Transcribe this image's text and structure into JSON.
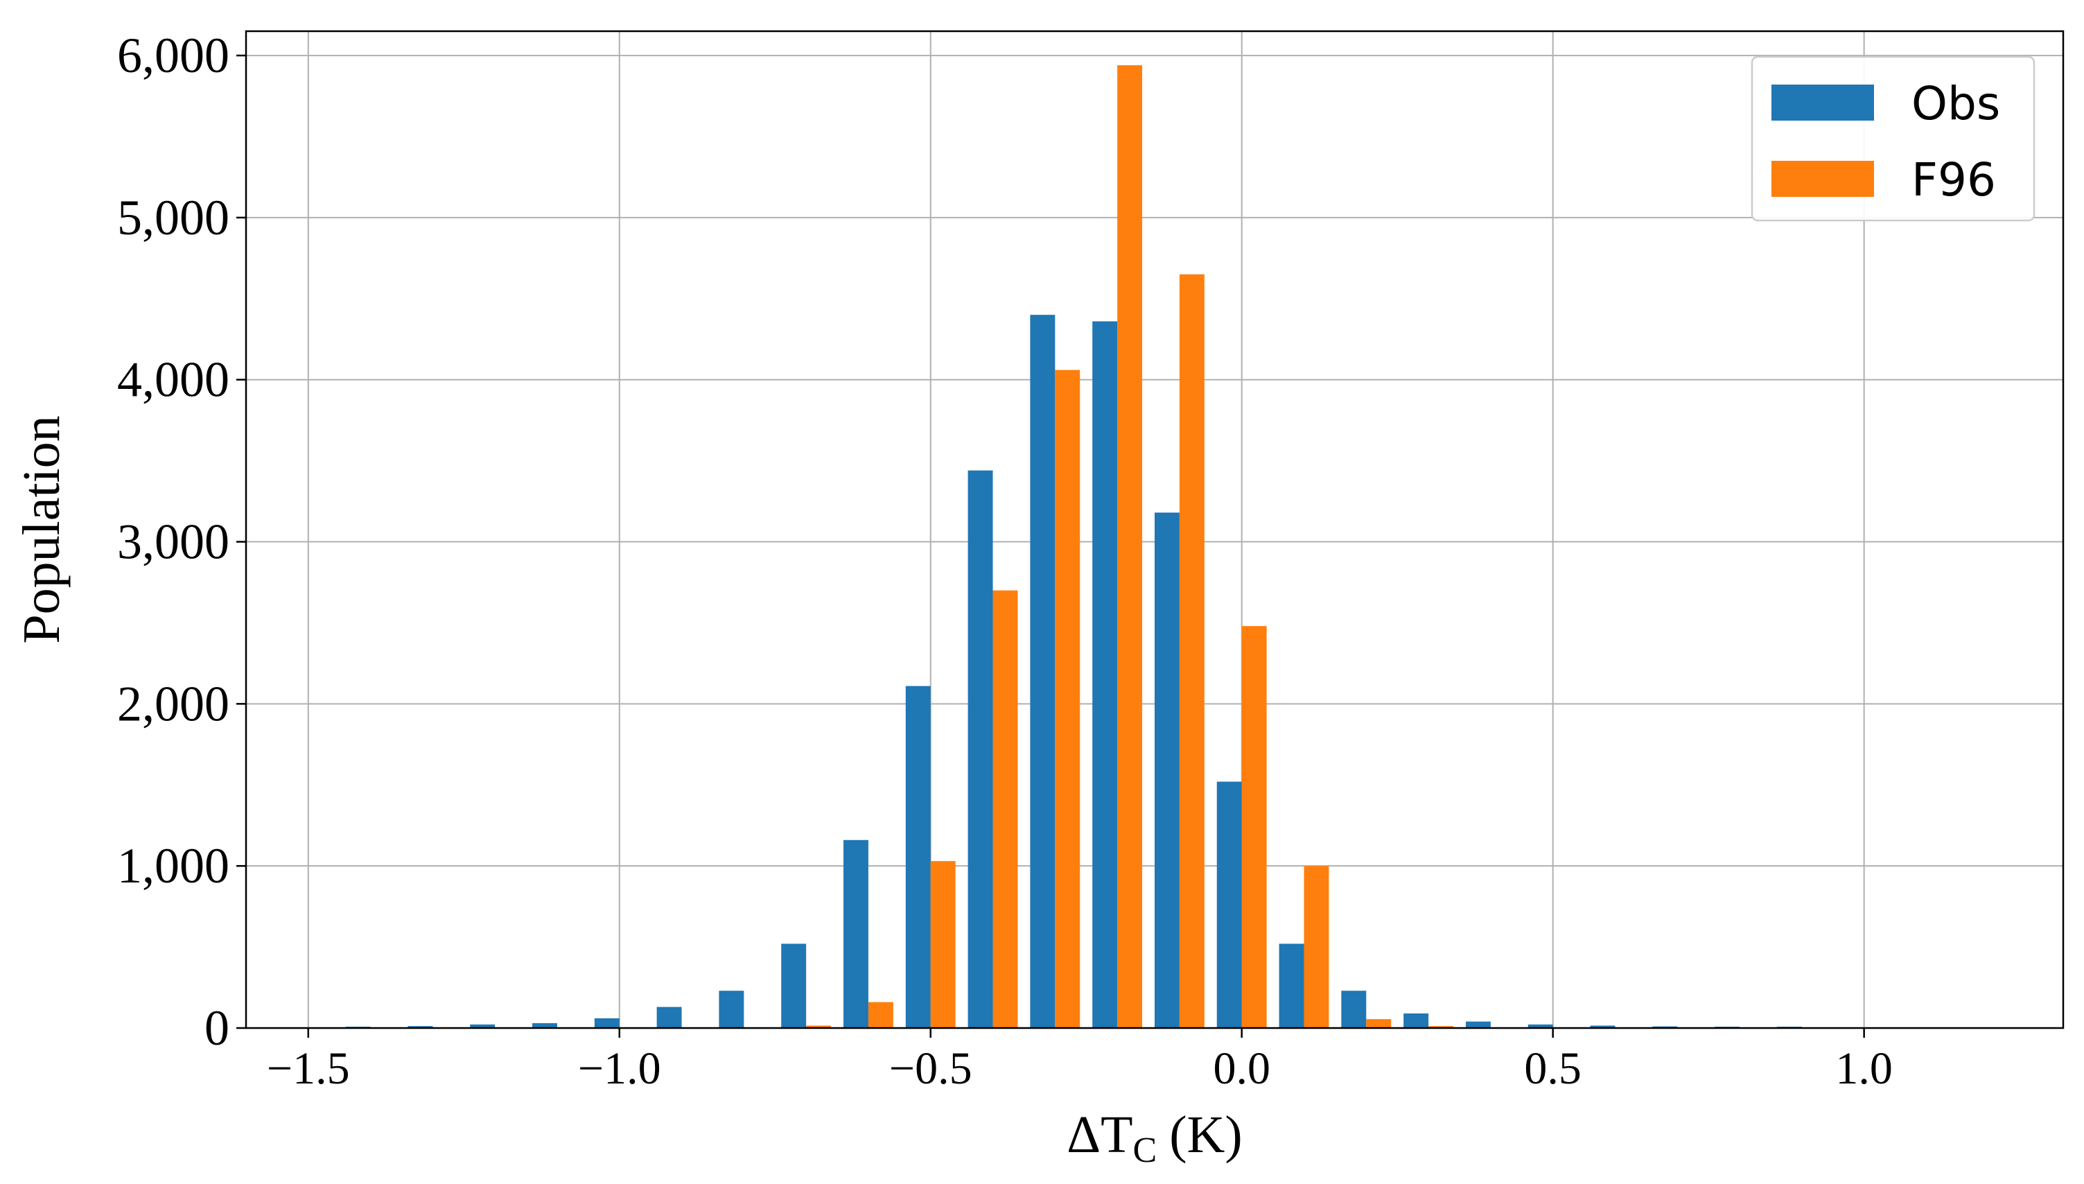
{
  "chart_data": {
    "type": "bar",
    "title": "",
    "xlabel": "ΔT",
    "xlabel_subscript": "C",
    "xlabel_unit": "(K)",
    "ylabel": "Population",
    "xlim": [
      -1.6,
      1.32
    ],
    "ylim": [
      0,
      6150
    ],
    "grid": true,
    "legend": {
      "position": "top-right"
    },
    "bin_width": 0.1,
    "bin_centers": [
      -1.4,
      -1.3,
      -1.2,
      -1.1,
      -1.0,
      -0.9,
      -0.8,
      -0.7,
      -0.6,
      -0.5,
      -0.4,
      -0.3,
      -0.2,
      -0.1,
      0.0,
      0.1,
      0.2,
      0.3,
      0.4,
      0.5,
      0.6,
      0.7,
      0.8,
      0.9,
      1.0
    ],
    "x_ticks": [
      {
        "value": -1.5,
        "label": "−1.5"
      },
      {
        "value": -1.0,
        "label": "−1.0"
      },
      {
        "value": -0.5,
        "label": "−0.5"
      },
      {
        "value": 0.0,
        "label": "0.0"
      },
      {
        "value": 0.5,
        "label": "0.5"
      },
      {
        "value": 1.0,
        "label": "1.0"
      }
    ],
    "y_ticks": [
      {
        "value": 0,
        "label": "0"
      },
      {
        "value": 1000,
        "label": "1,000"
      },
      {
        "value": 2000,
        "label": "2,000"
      },
      {
        "value": 3000,
        "label": "3,000"
      },
      {
        "value": 4000,
        "label": "4,000"
      },
      {
        "value": 5000,
        "label": "5,000"
      },
      {
        "value": 6000,
        "label": "6,000"
      }
    ],
    "series": [
      {
        "name": "Obs",
        "color": "#1f77b4",
        "values": [
          8,
          12,
          22,
          30,
          60,
          130,
          230,
          520,
          1160,
          2110,
          3440,
          4400,
          4360,
          3180,
          1520,
          520,
          230,
          90,
          40,
          22,
          15,
          10,
          8,
          8,
          0
        ]
      },
      {
        "name": "F96",
        "color": "#ff7f0e",
        "values": [
          0,
          0,
          0,
          0,
          0,
          0,
          0,
          15,
          160,
          1030,
          2700,
          4060,
          5940,
          4650,
          2480,
          1000,
          55,
          12,
          0,
          0,
          0,
          0,
          0,
          0,
          0
        ]
      }
    ]
  }
}
